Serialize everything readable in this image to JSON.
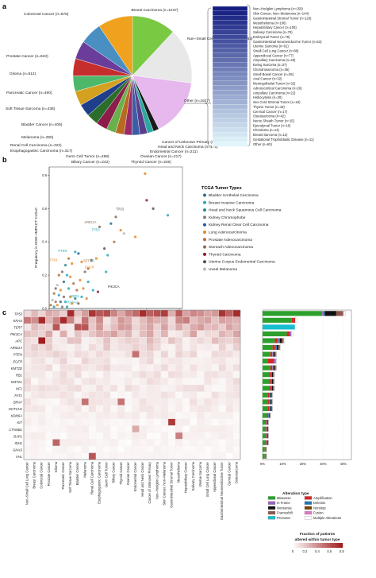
{
  "panel_a": {
    "letter": "a",
    "pie_labels": [
      {
        "name": "Breast Carcinoma (n=1237)",
        "n": 1237,
        "color": "#7ac943"
      },
      {
        "name": "Non–Small Cell Lung Cancer (n=1563)",
        "n": 1563,
        "color": "#e8e8e8"
      },
      {
        "name": "Other (n=1627)",
        "n": 1627,
        "color": "#e6b8ee"
      },
      {
        "name": "Cancer of Unknown Primary (n=160)",
        "n": 160,
        "color": "#1a1a1a"
      },
      {
        "name": "Head and Neck Carcinoma (n=179)",
        "n": 179,
        "color": "#2ca8a0"
      },
      {
        "name": "Endometrial Cancer (n=211)",
        "n": 211,
        "color": "#5a3d8a"
      },
      {
        "name": "Ovarian Cancer (n=217)",
        "n": 217,
        "color": "#3a5fa8"
      },
      {
        "name": "Thyroid Cancer (n=226)",
        "n": 226,
        "color": "#9a2a6a"
      },
      {
        "name": "Biliary Cancer (n=242)",
        "n": 242,
        "color": "#b86a1e"
      },
      {
        "name": "Germ Cell Tumor (n=268)",
        "n": 268,
        "color": "#6ab04c"
      },
      {
        "name": "Esophagogastric Carcinoma (n=317)",
        "n": 317,
        "color": "#8c1d4a"
      },
      {
        "name": "Renal Cell Carcinoma (n=322)",
        "n": 322,
        "color": "#2b6e2b"
      },
      {
        "name": "Melanoma (n=350)",
        "n": 350,
        "color": "#1f3f8a"
      },
      {
        "name": "Bladder Cancer (n=406)",
        "n": 406,
        "color": "#d4a020"
      },
      {
        "name": "Soft Tissue Sarcoma (n=438)",
        "n": 438,
        "color": "#4db86a"
      },
      {
        "name": "Pancreatic Cancer (n=490)",
        "n": 490,
        "color": "#c62d2d"
      },
      {
        "name": "Glioma (n=512)",
        "n": 512,
        "color": "#6a3d9a"
      },
      {
        "name": "Prostate Cancer (n=623)",
        "n": 623,
        "color": "#4a8fc2"
      },
      {
        "name": "Colorectal Cancer (n=978)",
        "n": 978,
        "color": "#f0a11e"
      }
    ],
    "other_list": [
      "Non–Hodgkin Lymphoma (n=159)",
      "Skin Cancer, Non–Melanoma (n=144)",
      "Gastrointestinal Stromal Tumor (n=126)",
      "Mesothelioma (n=106)",
      "Hepatobiliary Cancer (n=105)",
      "Salivary Carcinoma (n=76)",
      "Embryonal Tumor (n=76)",
      "Gastrointestinal Neuroendocrine Tumor (n=53)",
      "Uterine Sarcoma (n=91)",
      "Small Cell Lung Cancer (n=88)",
      "Appendiceal Cancer (n=77)",
      "Ampullary Carcinoma (n=45)",
      "Ewing Sarcoma (n=37)",
      "Chondrosarcoma (n=36)",
      "Small Bowel Cancer (n=35)",
      "Anal Cancer (n=32)",
      "Meningothelial Tumor (n=32)",
      "Adrenocortical Carcinoma (n=26)",
      "Ampullary Carcinoma (n=22)",
      "Histiocytosis (n=20)",
      "Sex Cord Stromal Tumor (n=18)",
      "Thymic Tumor (n=18)",
      "Cervical Cancer (n=17)",
      "Osteosarcoma (n=42)",
      "Nerve Sheath Tumor (n=15)",
      "Ependymal Tumor (n=16)",
      "Chordoma (n=14)",
      "Breast Sarcoma (n=12)",
      "Gestational Trophoblastic Disease (n=11)",
      "Other (n=60)"
    ]
  },
  "panel_b": {
    "letter": "b",
    "legend_title": "TCGA Tumor Types",
    "legend": [
      {
        "name": "Bladder Urothelial Carcinoma",
        "color": "#2a6f8a"
      },
      {
        "name": "Breast Invasive Carcinoma",
        "color": "#2aa9b8"
      },
      {
        "name": "Head and Neck Squamous Cell Carcinoma",
        "color": "#2a8a8a"
      },
      {
        "name": "Kidney Chromophobe",
        "color": "#7f7f7f"
      },
      {
        "name": "Kidney Renal Clear Cell Carcinoma",
        "color": "#1f5f9a"
      },
      {
        "name": "Lung Adenocarcinoma",
        "color": "#e08a2a"
      },
      {
        "name": "Prostate Adenocarcinoma",
        "color": "#b07040"
      },
      {
        "name": "Stomach Adenocarcinoma",
        "color": "#8a6a5a"
      },
      {
        "name": "Thyroid Carcinoma",
        "color": "#8a1a2a"
      },
      {
        "name": "Uterine Corpus Endometrial Carcinoma",
        "color": "#555555"
      },
      {
        "name": "Uveal Melanoma",
        "color": "#bbbbbb"
      }
    ],
    "annotations": [
      "TP53",
      "ARID1A",
      "TP53",
      "PTEN",
      "TP53",
      "SETD2",
      "EGFR",
      "PIK3CA",
      "NSD1",
      "RASA1"
    ]
  },
  "chart_data": {
    "type": "scatter",
    "xlabel": "Frequency in TCGA Cohort",
    "ylabel": "Frequency in MSK–IMPACT Cohort",
    "xticks": [
      "0.0",
      "0.2",
      "0.4",
      "0.6",
      "0.8"
    ],
    "yticks": [
      "0.0",
      "0.2",
      "0.4",
      "0.6",
      "0.8"
    ],
    "xlim": [
      0,
      0.82
    ],
    "ylim": [
      0,
      0.85
    ],
    "points": [
      {
        "x": 0.59,
        "y": 0.81,
        "series": "Lung Adenocarcinoma"
      },
      {
        "x": 0.6,
        "y": 0.65,
        "series": "Thyroid Carcinoma"
      },
      {
        "x": 0.64,
        "y": 0.6,
        "series": "Uterine Corpus Endometrial Carcinoma"
      },
      {
        "x": 0.73,
        "y": 0.56,
        "series": "Breast Invasive Carcinoma"
      },
      {
        "x": 0.41,
        "y": 0.55,
        "series": "Stomach Adenocarcinoma"
      },
      {
        "x": 0.38,
        "y": 0.51,
        "series": "Bladder Urothelial Carcinoma"
      },
      {
        "x": 0.44,
        "y": 0.47,
        "series": "Lung Adenocarcinoma"
      },
      {
        "x": 0.31,
        "y": 0.49,
        "series": "Stomach Adenocarcinoma"
      },
      {
        "x": 0.46,
        "y": 0.45,
        "series": "Uveal Melanoma"
      },
      {
        "x": 0.53,
        "y": 0.43,
        "series": "Lung Adenocarcinoma"
      },
      {
        "x": 0.4,
        "y": 0.4,
        "series": "Prostate Adenocarcinoma"
      },
      {
        "x": 0.34,
        "y": 0.36,
        "series": "Uterine Corpus Endometrial Carcinoma"
      },
      {
        "x": 0.36,
        "y": 0.32,
        "series": "Breast Invasive Carcinoma"
      },
      {
        "x": 0.29,
        "y": 0.3,
        "series": "Lung Adenocarcinoma"
      },
      {
        "x": 0.26,
        "y": 0.29,
        "series": "Head and Neck Squamous Cell Carcinoma"
      },
      {
        "x": 0.24,
        "y": 0.24,
        "series": "Prostate Adenocarcinoma"
      },
      {
        "x": 0.22,
        "y": 0.22,
        "series": "Stomach Adenocarcinoma"
      },
      {
        "x": 0.35,
        "y": 0.22,
        "series": "Breast Invasive Carcinoma"
      },
      {
        "x": 0.18,
        "y": 0.33,
        "series": "Kidney Renal Clear Cell Carcinoma"
      },
      {
        "x": 0.16,
        "y": 0.34,
        "series": "Breast Invasive Carcinoma"
      },
      {
        "x": 0.12,
        "y": 0.3,
        "series": "Prostate Adenocarcinoma"
      },
      {
        "x": 0.14,
        "y": 0.27,
        "series": "Lung Adenocarcinoma"
      },
      {
        "x": 0.2,
        "y": 0.28,
        "series": "Lung Adenocarcinoma"
      },
      {
        "x": 0.1,
        "y": 0.26,
        "series": "Head and Neck Squamous Cell Carcinoma"
      },
      {
        "x": 0.08,
        "y": 0.22,
        "series": "Stomach Adenocarcinoma"
      },
      {
        "x": 0.06,
        "y": 0.2,
        "series": "Prostate Adenocarcinoma"
      },
      {
        "x": 0.11,
        "y": 0.2,
        "series": "Breast Invasive Carcinoma"
      },
      {
        "x": 0.13,
        "y": 0.19,
        "series": "Lung Adenocarcinoma"
      },
      {
        "x": 0.09,
        "y": 0.16,
        "series": "Bladder Urothelial Carcinoma"
      },
      {
        "x": 0.15,
        "y": 0.15,
        "series": "Prostate Adenocarcinoma"
      },
      {
        "x": 0.19,
        "y": 0.17,
        "series": "Lung Adenocarcinoma"
      },
      {
        "x": 0.24,
        "y": 0.16,
        "series": "Breast Invasive Carcinoma"
      },
      {
        "x": 0.05,
        "y": 0.14,
        "series": "Uveal Melanoma"
      },
      {
        "x": 0.04,
        "y": 0.12,
        "series": "Stomach Adenocarcinoma"
      },
      {
        "x": 0.07,
        "y": 0.11,
        "series": "Lung Adenocarcinoma"
      },
      {
        "x": 0.12,
        "y": 0.12,
        "series": "Breast Invasive Carcinoma"
      },
      {
        "x": 0.17,
        "y": 0.11,
        "series": "Prostate Adenocarcinoma"
      },
      {
        "x": 0.21,
        "y": 0.12,
        "series": "Lung Adenocarcinoma"
      },
      {
        "x": 0.27,
        "y": 0.11,
        "series": "Breast Invasive Carcinoma"
      },
      {
        "x": 0.3,
        "y": 0.1,
        "series": "Thyroid Carcinoma"
      },
      {
        "x": 0.03,
        "y": 0.09,
        "series": "Prostate Adenocarcinoma"
      },
      {
        "x": 0.06,
        "y": 0.08,
        "series": "Breast Invasive Carcinoma"
      },
      {
        "x": 0.09,
        "y": 0.07,
        "series": "Stomach Adenocarcinoma"
      },
      {
        "x": 0.13,
        "y": 0.07,
        "series": "Lung Adenocarcinoma"
      },
      {
        "x": 0.16,
        "y": 0.06,
        "series": "Head and Neck Squamous Cell Carcinoma"
      },
      {
        "x": 0.2,
        "y": 0.07,
        "series": "Breast Invasive Carcinoma"
      },
      {
        "x": 0.23,
        "y": 0.06,
        "series": "Lung Adenocarcinoma"
      },
      {
        "x": 0.02,
        "y": 0.05,
        "series": "Uveal Melanoma"
      },
      {
        "x": 0.04,
        "y": 0.04,
        "series": "Prostate Adenocarcinoma"
      },
      {
        "x": 0.07,
        "y": 0.04,
        "series": "Bladder Urothelial Carcinoma"
      },
      {
        "x": 0.1,
        "y": 0.04,
        "series": "Breast Invasive Carcinoma"
      },
      {
        "x": 0.14,
        "y": 0.03,
        "series": "Lung Adenocarcinoma"
      },
      {
        "x": 0.18,
        "y": 0.03,
        "series": "Stomach Adenocarcinoma"
      },
      {
        "x": 0.01,
        "y": 0.02,
        "series": "Prostate Adenocarcinoma"
      },
      {
        "x": 0.03,
        "y": 0.01,
        "series": "Breast Invasive Carcinoma"
      },
      {
        "x": 0.05,
        "y": 0.02,
        "series": "Lung Adenocarcinoma"
      },
      {
        "x": 0.08,
        "y": 0.01,
        "series": "Kidney Chromophobe"
      },
      {
        "x": 0.11,
        "y": 0.01,
        "series": "Breast Invasive Carcinoma"
      }
    ]
  },
  "panel_c": {
    "letter": "c",
    "genes": [
      "TP53",
      "KRAS",
      "TERT",
      "PIK3CA",
      "APC",
      "ARID1A",
      "PTEN",
      "EGFR",
      "KMT2D",
      "RB1",
      "KMT2C",
      "NF1",
      "FAT1",
      "BRAF",
      "NOTCH1",
      "KDM6A",
      "KIT",
      "CTNNB1",
      "BAP1",
      "IDH1",
      "GNAS",
      "VHL"
    ],
    "tumor_types": [
      "Non–Small Cell Lung Cancer",
      "Breast Carcinoma",
      "Colorectal Cancer",
      "Prostate Cancer",
      "Glioma",
      "Pancreatic Cancer",
      "Soft Tissue Sarcoma",
      "Bladder Cancer",
      "Melanoma",
      "Renal Cell Carcinoma",
      "Esophagogastric Carcinoma",
      "Germ Cell Tumor",
      "Biliary Cancer",
      "Thyroid Cancer",
      "Ovarian Cancer",
      "Endometrial Cancer",
      "Head and Neck Cancer",
      "Cancer of Unknown Primary",
      "Non–Hodgkin Lymphoma",
      "Skin Cancer, Non–Melanoma",
      "Gastrointestinal Stromal Tumor",
      "Mesothelioma",
      "Hepatobiliary Cancer",
      "Salivary Carcinoma",
      "Uterine Sarcoma",
      "Small Cell Lung Cancer",
      "Appendiceal Cancer",
      "Gastrointestinal Neuroendocrine Tumor",
      "Cervical Cancer",
      "Osteosarcoma"
    ],
    "bar_axis_ticks": [
      "0%",
      "10%",
      "20%",
      "30%",
      "40%"
    ],
    "gene_bar_percent": [
      41,
      17,
      16,
      15,
      11,
      9,
      7,
      7,
      7,
      6,
      6,
      6,
      5,
      5,
      5,
      4,
      3,
      3,
      3,
      3,
      2,
      2
    ],
    "legend_title": "Alteration type",
    "alteration_types": [
      {
        "name": "Missense",
        "color": "#2ca02c"
      },
      {
        "name": "Amplification",
        "color": "#d62728"
      },
      {
        "name": "In Frame",
        "color": "#9467bd"
      },
      {
        "name": "Deletion",
        "color": "#1f77b4"
      },
      {
        "name": "Nonsense",
        "color": "#111111"
      },
      {
        "name": "Nonstop",
        "color": "#7f3f00"
      },
      {
        "name": "Frameshift",
        "color": "#8c564b"
      },
      {
        "name": "Fusion",
        "color": "#e377c2"
      },
      {
        "name": "Promoter",
        "color": "#17becf"
      },
      {
        "name": "Multiple Alterations",
        "color": "#ffffff"
      }
    ],
    "fraction_title_1": "Fraction of patients",
    "fraction_title_2": "altered within tumor type",
    "fraction_ticks": [
      "0",
      "0.2",
      "0.4",
      "0.6",
      "0.8"
    ]
  }
}
